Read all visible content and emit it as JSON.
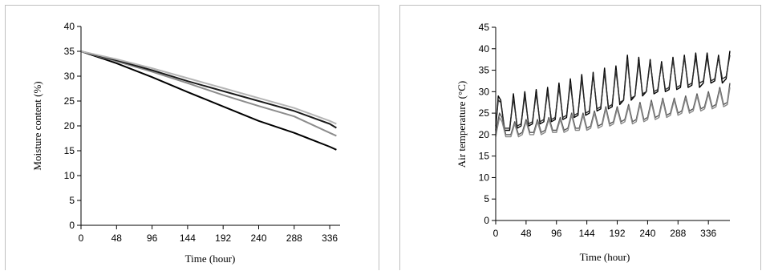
{
  "chart_data": [
    {
      "type": "line",
      "title": "",
      "xlabel": "Time (hour)",
      "ylabel": "Moisture content (%)",
      "xlim": [
        0,
        350
      ],
      "ylim": [
        0,
        40
      ],
      "xticks": [
        0,
        48,
        96,
        144,
        192,
        240,
        288,
        336
      ],
      "yticks": [
        0,
        5,
        10,
        15,
        20,
        25,
        30,
        35,
        40
      ],
      "grid": false,
      "legend": "none",
      "series": [
        {
          "color": "#000000",
          "x": [
            0,
            48,
            96,
            144,
            192,
            240,
            288,
            336,
            345
          ],
          "y": [
            35,
            32.6,
            29.8,
            26.8,
            23.9,
            21.0,
            18.6,
            15.8,
            15.2
          ]
        },
        {
          "color": "#8c8c8c",
          "x": [
            0,
            48,
            96,
            144,
            192,
            240,
            288,
            336,
            345
          ],
          "y": [
            35,
            33.0,
            30.9,
            28.6,
            26.2,
            24.0,
            21.9,
            18.6,
            18.0
          ]
        },
        {
          "color": "#1a1a1a",
          "x": [
            0,
            48,
            96,
            144,
            192,
            240,
            288,
            336,
            345
          ],
          "y": [
            35,
            33.2,
            31.2,
            29.0,
            27.0,
            25.0,
            23.0,
            20.4,
            19.6
          ]
        },
        {
          "color": "#b5b5b5",
          "x": [
            0,
            48,
            96,
            144,
            192,
            240,
            288,
            336,
            345
          ],
          "y": [
            35,
            33.4,
            31.6,
            29.6,
            27.6,
            25.6,
            23.6,
            21.0,
            20.4
          ]
        }
      ]
    },
    {
      "type": "line",
      "title": "",
      "xlabel": "Time (hour)",
      "ylabel": "Air temperature (°C)",
      "xlim": [
        0,
        370
      ],
      "ylim": [
        0,
        45
      ],
      "xticks": [
        0,
        48,
        96,
        144,
        192,
        240,
        288,
        336
      ],
      "yticks": [
        0,
        5,
        10,
        15,
        20,
        25,
        30,
        35,
        40,
        45
      ],
      "grid": false,
      "legend": "none",
      "series": [
        {
          "color": "#000000",
          "x": [
            0,
            4,
            8,
            14,
            22,
            28,
            34,
            40,
            46,
            52,
            58,
            64,
            70,
            76,
            82,
            88,
            94,
            100,
            106,
            112,
            118,
            124,
            130,
            136,
            142,
            148,
            154,
            160,
            166,
            172,
            178,
            184,
            190,
            196,
            202,
            208,
            214,
            220,
            226,
            232,
            238,
            244,
            250,
            256,
            262,
            268,
            274,
            280,
            286,
            292,
            298,
            304,
            310,
            316,
            322,
            328,
            334,
            340,
            346,
            352,
            358,
            364,
            370
          ],
          "y": [
            21,
            29,
            28,
            21,
            21,
            29.5,
            21.5,
            22,
            30,
            22,
            22.5,
            30.5,
            22.5,
            23,
            31,
            23,
            23.5,
            32,
            23.5,
            24,
            33,
            24,
            24.5,
            34,
            24.5,
            25,
            34.5,
            25.5,
            26,
            35.5,
            26,
            26.5,
            36,
            27,
            28,
            38.5,
            28,
            29,
            38,
            29,
            30,
            37.5,
            29.5,
            30,
            37,
            30,
            30.5,
            38,
            30.5,
            31,
            38.5,
            31,
            31.5,
            39,
            31,
            32,
            39,
            32,
            32.5,
            38.5,
            32,
            33,
            39.5
          ]
        },
        {
          "color": "#2a2a2a",
          "x": [
            0,
            4,
            8,
            14,
            22,
            28,
            34,
            40,
            46,
            52,
            58,
            64,
            70,
            76,
            82,
            88,
            94,
            100,
            106,
            112,
            118,
            124,
            130,
            136,
            142,
            148,
            154,
            160,
            166,
            172,
            178,
            184,
            190,
            196,
            202,
            208,
            214,
            220,
            226,
            232,
            238,
            244,
            250,
            256,
            262,
            268,
            274,
            280,
            286,
            292,
            298,
            304,
            310,
            316,
            322,
            328,
            334,
            340,
            346,
            352,
            358,
            364,
            370
          ],
          "y": [
            22,
            28,
            27.5,
            21.5,
            21.5,
            28.5,
            22,
            22.5,
            29,
            22.5,
            23,
            29.5,
            23,
            23.5,
            30,
            23.5,
            24,
            31,
            24,
            24.5,
            32,
            24.5,
            25,
            33,
            25,
            25.5,
            34,
            26,
            26.5,
            34.5,
            26.5,
            27,
            35,
            27.5,
            28,
            37.5,
            28.5,
            29,
            37,
            29.5,
            30,
            37,
            30,
            30.5,
            36.5,
            30.5,
            31,
            37.5,
            31,
            31.5,
            38,
            31.5,
            32,
            38,
            32,
            32.5,
            38,
            32.5,
            33,
            38,
            33,
            33.5,
            38.5
          ]
        },
        {
          "color": "#555555",
          "x": [
            0,
            6,
            10,
            16,
            24,
            30,
            36,
            42,
            48,
            54,
            60,
            66,
            72,
            78,
            84,
            90,
            96,
            102,
            108,
            114,
            120,
            126,
            132,
            138,
            144,
            150,
            156,
            162,
            168,
            174,
            180,
            186,
            192,
            198,
            204,
            210,
            216,
            222,
            228,
            234,
            240,
            246,
            252,
            258,
            264,
            270,
            276,
            282,
            288,
            294,
            300,
            306,
            312,
            318,
            324,
            330,
            336,
            342,
            348,
            354,
            360,
            366,
            370
          ],
          "y": [
            20,
            25,
            24,
            20,
            20,
            23,
            20,
            20.5,
            23.5,
            20.5,
            20.5,
            23.5,
            20.5,
            21,
            24,
            21,
            21,
            24,
            21,
            21.5,
            25,
            21.5,
            21.5,
            25,
            21.5,
            22,
            25.5,
            22,
            22.5,
            26.5,
            22.5,
            23,
            26.5,
            23,
            23.5,
            27,
            23,
            23.5,
            27.5,
            23.5,
            24,
            28,
            24,
            24.5,
            28.5,
            24.5,
            25,
            28.5,
            25,
            25.5,
            29,
            25.5,
            26,
            29.5,
            26,
            26.5,
            30,
            26.5,
            27,
            31,
            27,
            27.5,
            32
          ]
        },
        {
          "color": "#888888",
          "x": [
            0,
            6,
            10,
            16,
            24,
            30,
            36,
            42,
            48,
            54,
            60,
            66,
            72,
            78,
            84,
            90,
            96,
            102,
            108,
            114,
            120,
            126,
            132,
            138,
            144,
            150,
            156,
            162,
            168,
            174,
            180,
            186,
            192,
            198,
            204,
            210,
            216,
            222,
            228,
            234,
            240,
            246,
            252,
            258,
            264,
            270,
            276,
            282,
            288,
            294,
            300,
            306,
            312,
            318,
            324,
            330,
            336,
            342,
            348,
            354,
            360,
            366,
            370
          ],
          "y": [
            19.5,
            24,
            23,
            19.5,
            19.5,
            22.5,
            19.5,
            20,
            23,
            20,
            20,
            23,
            20,
            20.5,
            23.5,
            20.5,
            20.5,
            23.5,
            20.5,
            21,
            24.5,
            21,
            21,
            24.5,
            21,
            21.5,
            25,
            21.5,
            22,
            26,
            22,
            22.5,
            26,
            22.5,
            23,
            26.5,
            22.5,
            23,
            27,
            23,
            23.5,
            27.5,
            23.5,
            24,
            28,
            24,
            24.5,
            28,
            24.5,
            25,
            28.5,
            25,
            25.5,
            29,
            25.5,
            26,
            29.5,
            26,
            26.5,
            30.5,
            26.5,
            27,
            31
          ]
        }
      ]
    }
  ]
}
